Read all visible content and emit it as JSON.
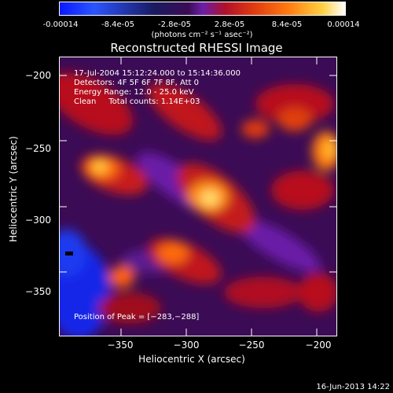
{
  "colorbar": {
    "tick_labels": [
      "-0.00014",
      "-8.4e-05",
      "-2.8e-05",
      "2.8e-05",
      "8.4e-05",
      "0.00014"
    ],
    "tick_values": [
      -0.00014,
      -8.4e-05,
      -2.8e-05,
      2.8e-05,
      8.4e-05,
      0.00014
    ],
    "units": "(photons cm⁻² s⁻¹ asec⁻²)"
  },
  "chart_data": {
    "type": "heatmap",
    "title": "Reconstructed RHESSI Image",
    "xlabel": "Heliocentric X (arcsec)",
    "ylabel": "Heliocentric Y (arcsec)",
    "xlim": [
      -390,
      -200
    ],
    "ylim": [
      -380,
      -190
    ],
    "x_ticks": [
      -350,
      -300,
      -250,
      -200
    ],
    "y_ticks": [
      -200,
      -250,
      -300,
      -350
    ],
    "x_tick_labels": [
      "−350",
      "−300",
      "−250",
      "−200"
    ],
    "y_tick_labels": [
      "−200",
      "−250",
      "−300",
      "−350"
    ],
    "peak": [
      -283,
      -288
    ],
    "annotations": {
      "time": "17-Jul-2004 15:12:24.000 to 15:14:36.000",
      "detectors": "Detectors: 4F 5F 6F 7F 8F, Att 0",
      "energy": "Energy Range: 12.0 - 25.0 keV",
      "clean": "Clean     Total counts: 1.14E+03",
      "peak_label": "Position of Peak = [−283,−288]"
    },
    "colors": {
      "negative": "#0a18ff",
      "low": "#3b0b55",
      "mid": "#c0181e",
      "high": "#ff9a10",
      "max": "#ffffff"
    }
  },
  "footer": {
    "date": "16-Jun-2013 14:22"
  }
}
